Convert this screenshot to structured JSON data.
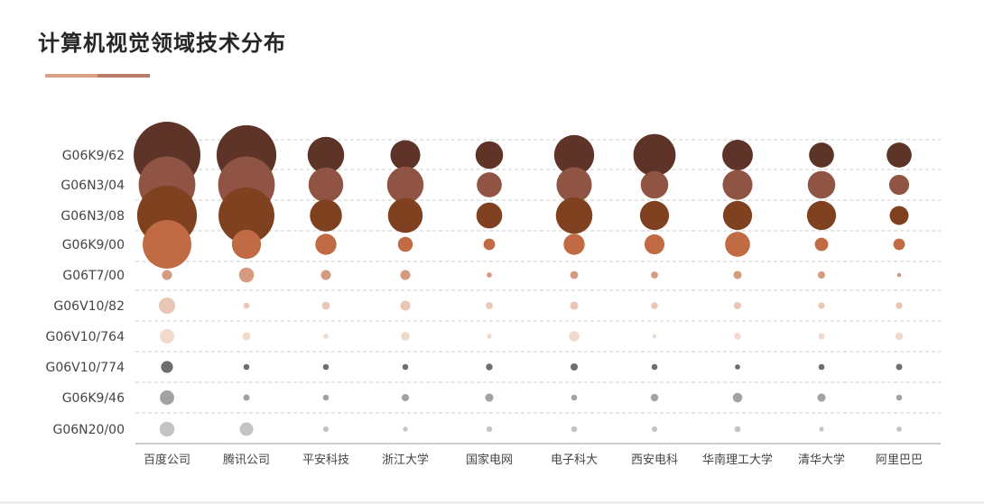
{
  "title": "计算机视觉领域技术分布",
  "colors": {
    "accent_left": "#d9a183",
    "accent_right": "#b97a6a",
    "gridline": "#cfcfcf",
    "axis": "#999999"
  },
  "chart_data": {
    "type": "scatter",
    "subtype": "bubble-matrix",
    "title": "计算机视觉领域技术分布",
    "grid": true,
    "categories_x": [
      "百度公司",
      "腾讯公司",
      "平安科技",
      "浙江大学",
      "国家电网",
      "电子科大",
      "西安电科",
      "华南理工大学",
      "清华大学",
      "阿里巴巴"
    ],
    "categories_y": [
      "G06K9/62",
      "G06N3/04",
      "G06N3/08",
      "G06K9/00",
      "G06T7/00",
      "G06V10/82",
      "G06V10/764",
      "G06V10/774",
      "G06K9/46",
      "G06N20/00"
    ],
    "series": [
      {
        "values": [
          100,
          80,
          30,
          20,
          17,
          36,
          40,
          21,
          14,
          14
        ],
        "color": "#5e3328"
      },
      {
        "values": [
          72,
          72,
          27,
          30,
          14,
          28,
          17,
          20,
          17,
          9
        ],
        "color": "#8f5444"
      },
      {
        "values": [
          80,
          70,
          23,
          27,
          15,
          30,
          19,
          19,
          19,
          8
        ],
        "color": "#7f4120"
      },
      {
        "values": [
          53,
          19,
          10,
          5,
          3,
          10,
          9,
          14,
          4,
          3
        ],
        "color": "#c06b44"
      },
      {
        "values": [
          2.2,
          5,
          2.2,
          2.2,
          0.6,
          1.4,
          1.1,
          1.5,
          1.2,
          0.4
        ],
        "color": "#d49b7e"
      },
      {
        "values": [
          6,
          0.8,
          1.4,
          2.2,
          1.1,
          1.5,
          1,
          1.2,
          0.9,
          1
        ],
        "color": "#e9c6b5"
      },
      {
        "values": [
          4.6,
          1.4,
          0.6,
          1.7,
          0.5,
          2.4,
          0.4,
          1,
          0.9,
          1.3
        ],
        "color": "#f1d9cc"
      },
      {
        "values": [
          3.2,
          0.8,
          0.8,
          0.8,
          1,
          1.2,
          0.8,
          0.6,
          0.8,
          0.9
        ],
        "color": "#6e6e6e"
      },
      {
        "values": [
          4.6,
          0.9,
          0.8,
          1.2,
          1.5,
          0.8,
          1.3,
          2,
          1.5,
          0.8
        ],
        "color": "#a2a2a2"
      },
      {
        "values": [
          4.9,
          4.1,
          0.7,
          0.5,
          0.7,
          0.8,
          0.7,
          0.8,
          0.5,
          0.6
        ],
        "color": "#c4c4c4"
      }
    ]
  }
}
